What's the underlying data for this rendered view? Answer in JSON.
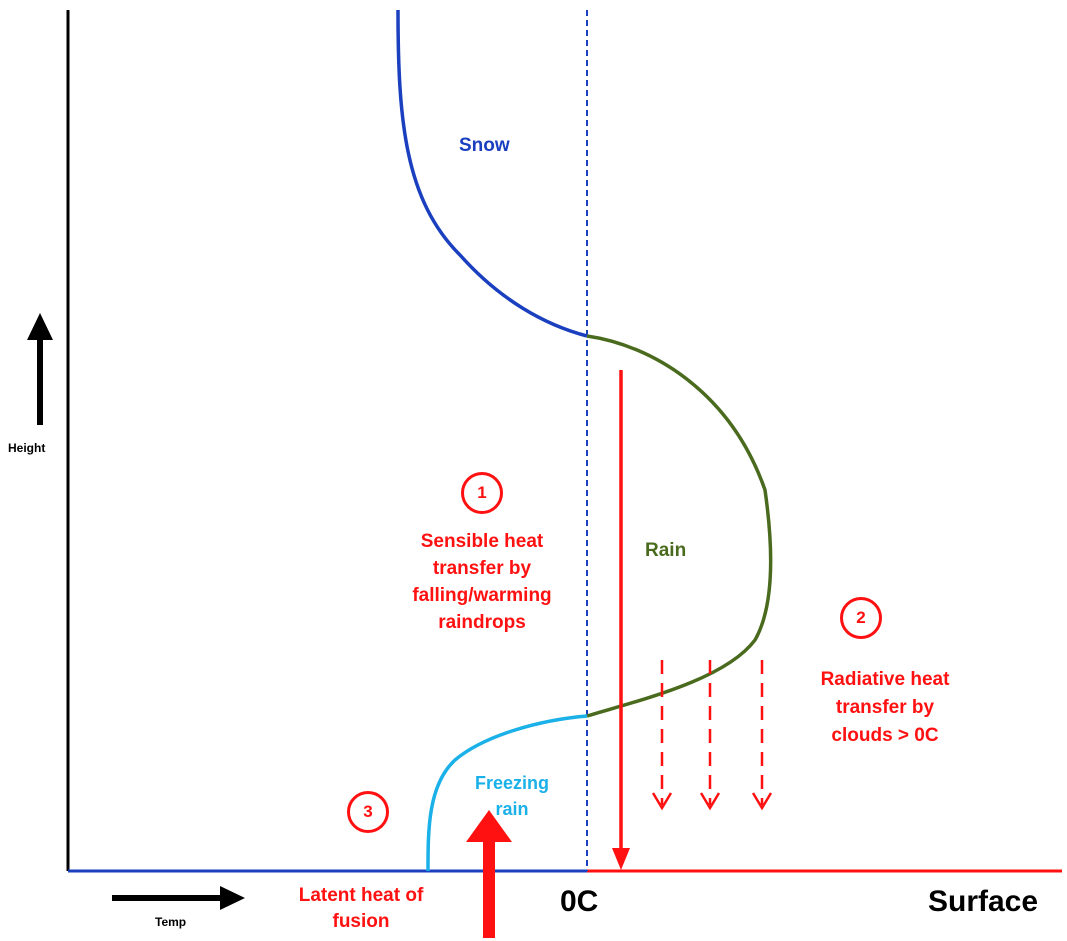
{
  "diagram": {
    "labels": {
      "snow": "Snow",
      "rain": "Rain",
      "freezing_rain": "Freezing rain",
      "zero_c": "0C",
      "surface": "Surface",
      "height": "Height",
      "temp": "Temp"
    },
    "annotations": [
      {
        "number": "1",
        "text": "Sensible heat transfer by falling/warming raindrops"
      },
      {
        "number": "2",
        "text": "Radiative heat transfer by clouds > 0C"
      },
      {
        "number": "3",
        "text": "Latent heat of fusion"
      }
    ],
    "colors": {
      "snow": "#1a3fbf",
      "rain": "#4a6b1e",
      "freezing_rain": "#1ab0e8",
      "annotation": "#ff1111",
      "axis": "#000000",
      "zero_line": "#1a3fbf"
    }
  }
}
